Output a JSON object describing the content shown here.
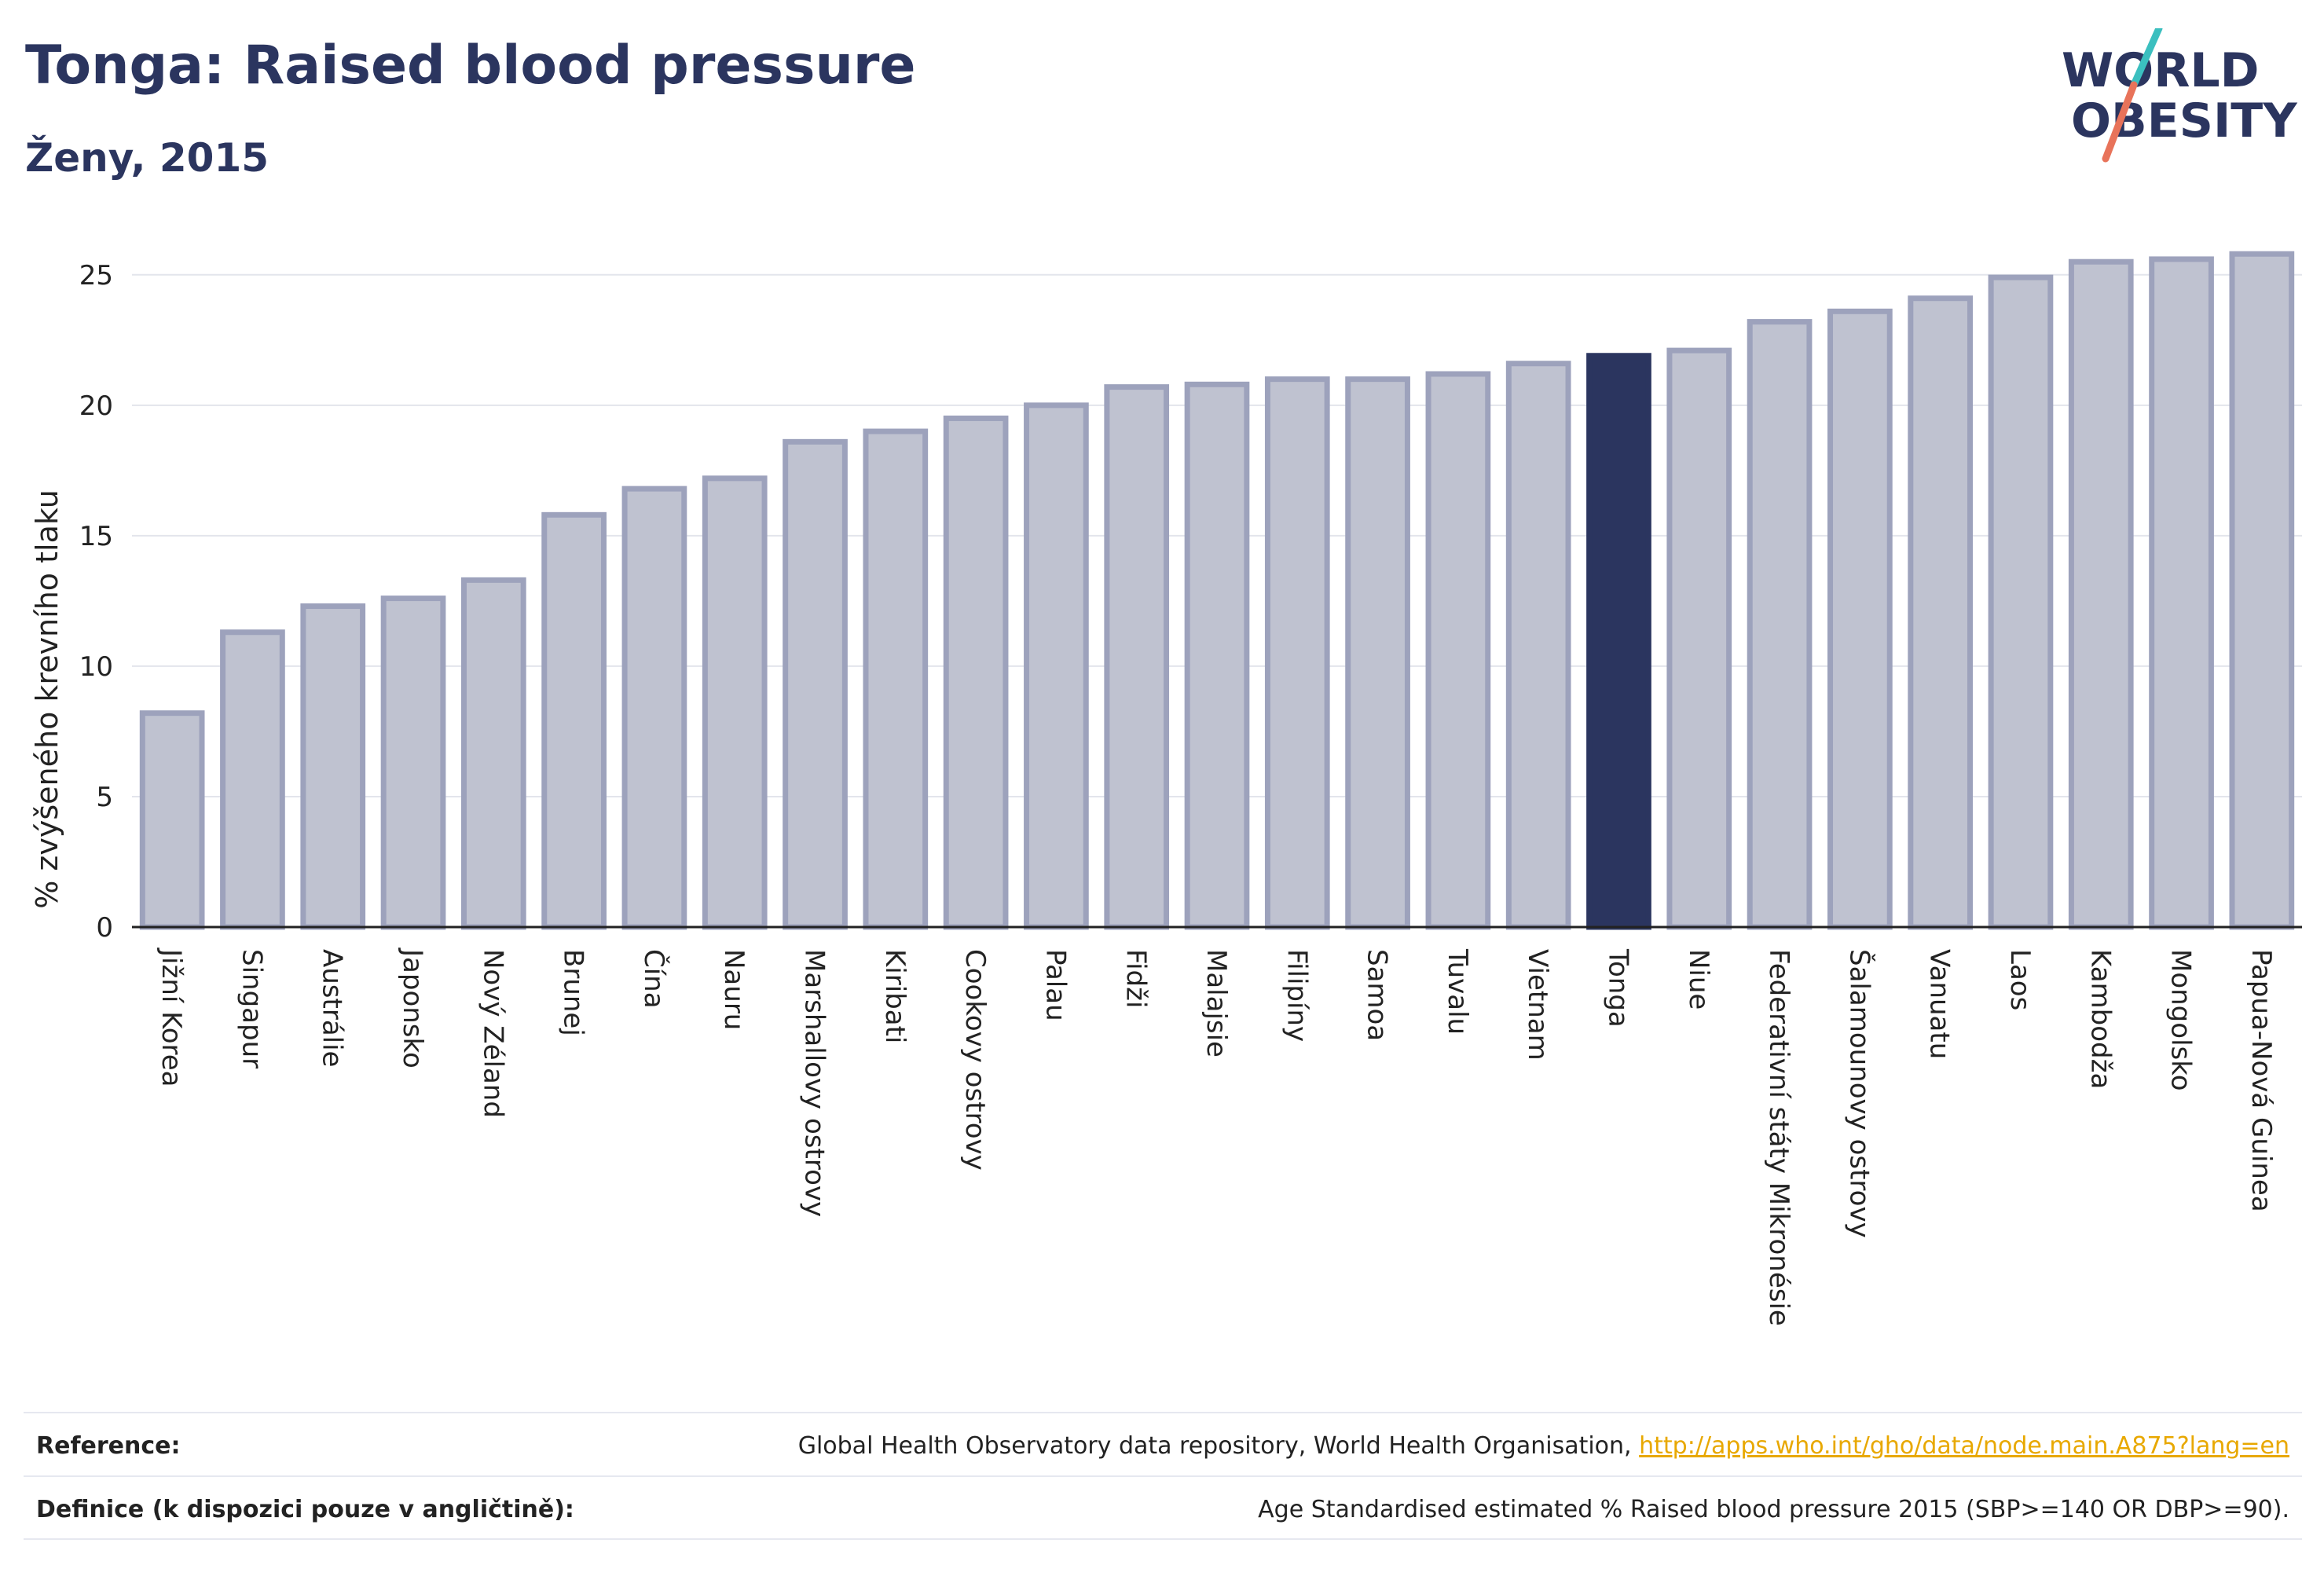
{
  "header": {
    "title": "Tonga: Raised blood pressure",
    "subtitle": "Ženy, 2015"
  },
  "logo": {
    "line1": "WORLD",
    "line2": "OBESITY",
    "accent_teal": "#3bbfbf",
    "accent_coral": "#e8735a",
    "text_color": "#2b355f"
  },
  "chart_data": {
    "type": "bar",
    "title": "",
    "xlabel": "",
    "ylabel": "% zvýšeného krevního tlaku",
    "ylim": [
      0,
      26.5
    ],
    "yticks": [
      0,
      5,
      10,
      15,
      20,
      25
    ],
    "grid": true,
    "highlight": "Tonga",
    "colors": {
      "bar_fill": "#bfc2d0",
      "bar_stroke": "#9da2bc",
      "highlight_fill": "#2b355f"
    },
    "categories": [
      "Jižní Korea",
      "Singapur",
      "Austrálie",
      "Japonsko",
      "Nový Zéland",
      "Brunej",
      "Čína",
      "Nauru",
      "Marshallovy ostrovy",
      "Kiribati",
      "Cookovy ostrovy",
      "Palau",
      "Fidži",
      "Malajsie",
      "Filipíny",
      "Samoa",
      "Tuvalu",
      "Vietnam",
      "Tonga",
      "Niue",
      "Federativní státy Mikronésie",
      "Šalamounovy ostrovy",
      "Vanuatu",
      "Laos",
      "Kambodža",
      "Mongolsko",
      "Papua-Nová Guinea"
    ],
    "values": [
      8.2,
      11.3,
      12.3,
      12.6,
      13.3,
      15.8,
      16.8,
      17.2,
      18.6,
      19.0,
      19.5,
      20.0,
      20.7,
      20.8,
      21.0,
      21.0,
      21.2,
      21.6,
      21.9,
      22.1,
      23.2,
      23.6,
      24.1,
      24.9,
      25.5,
      25.6,
      25.8
    ]
  },
  "footer": {
    "reference_label": "Reference:",
    "reference_text": "Global Health Observatory data repository, World Health Organisation,",
    "reference_link": "http://apps.who.int/gho/data/node.main.A875?lang=en",
    "definition_label": "Definice (k dispozici pouze v angličtině):",
    "definition_text": "Age Standardised estimated % Raised blood pressure 2015 (SBP>=140 OR DBP>=90)."
  }
}
